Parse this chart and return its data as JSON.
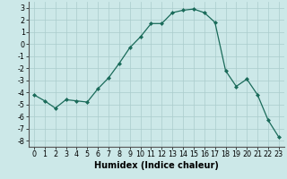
{
  "xlabel": "Humidex (Indice chaleur)",
  "x": [
    0,
    1,
    2,
    3,
    4,
    5,
    6,
    7,
    8,
    9,
    10,
    11,
    12,
    13,
    14,
    15,
    16,
    17,
    18,
    19,
    20,
    21,
    22,
    23
  ],
  "y": [
    -4.2,
    -4.7,
    -5.3,
    -4.6,
    -4.7,
    -4.8,
    -3.7,
    -2.8,
    -1.6,
    -0.3,
    0.6,
    1.7,
    1.7,
    2.6,
    2.8,
    2.9,
    2.6,
    1.8,
    -2.2,
    -3.5,
    -2.9,
    -4.2,
    -6.3,
    -7.7
  ],
  "ylim": [
    -8.5,
    3.5
  ],
  "xlim": [
    -0.5,
    23.5
  ],
  "yticks": [
    -8,
    -7,
    -6,
    -5,
    -4,
    -3,
    -2,
    -1,
    0,
    1,
    2,
    3
  ],
  "xticks": [
    0,
    1,
    2,
    3,
    4,
    5,
    6,
    7,
    8,
    9,
    10,
    11,
    12,
    13,
    14,
    15,
    16,
    17,
    18,
    19,
    20,
    21,
    22,
    23
  ],
  "line_color": "#1a6b5a",
  "marker_color": "#1a6b5a",
  "bg_color": "#cce8e8",
  "grid_color": "#aacccc",
  "tick_fontsize": 5.8,
  "xlabel_fontsize": 7.0
}
